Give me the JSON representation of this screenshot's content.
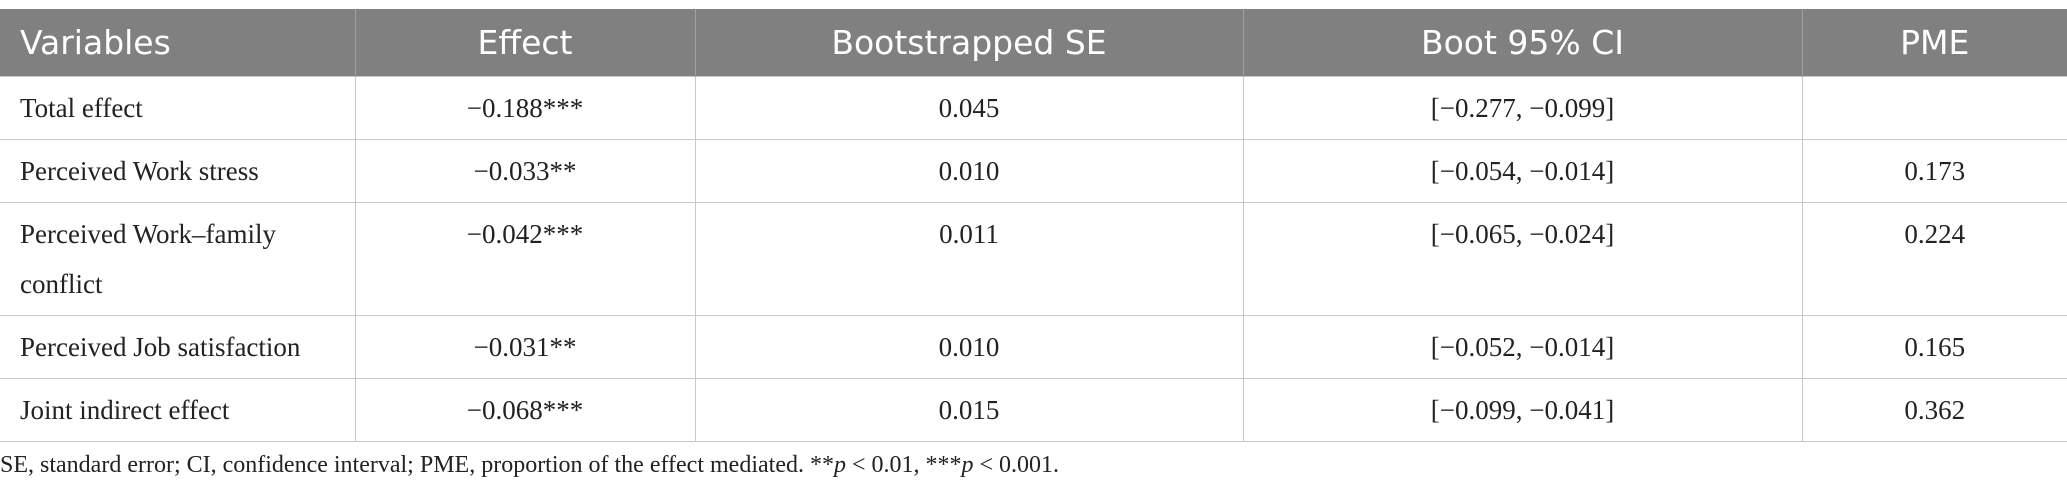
{
  "table": {
    "header": [
      "Variables",
      "Effect",
      "Bootstrapped SE",
      "Boot 95% CI",
      "PME"
    ],
    "rows": [
      [
        "Total effect",
        "−0.188***",
        "0.045",
        "[−0.277, −0.099]",
        null
      ],
      [
        "Perceived Work stress",
        "−0.033**",
        "0.010",
        "[−0.054, −0.014]",
        "0.173"
      ],
      [
        "Perceived Work–family conflict",
        "−0.042***",
        "0.011",
        "[−0.065, −0.024]",
        "0.224"
      ],
      [
        "Perceived Job satisfaction",
        "−0.031**",
        "0.010",
        "[−0.052, −0.014]",
        "0.165"
      ],
      [
        "Joint indirect effect",
        "−0.068***",
        "0.015",
        "[−0.099, −0.041]",
        "0.362"
      ]
    ]
  },
  "footnote": [
    {
      "text": "SE, standard error; CI, confidence interval; PME, proportion of the effect mediated. **"
    },
    {
      "text": "p",
      "italic": true
    },
    {
      "text": " < 0.01, ***"
    },
    {
      "text": "p",
      "italic": true
    },
    {
      "text": " < 0.001."
    }
  ]
}
